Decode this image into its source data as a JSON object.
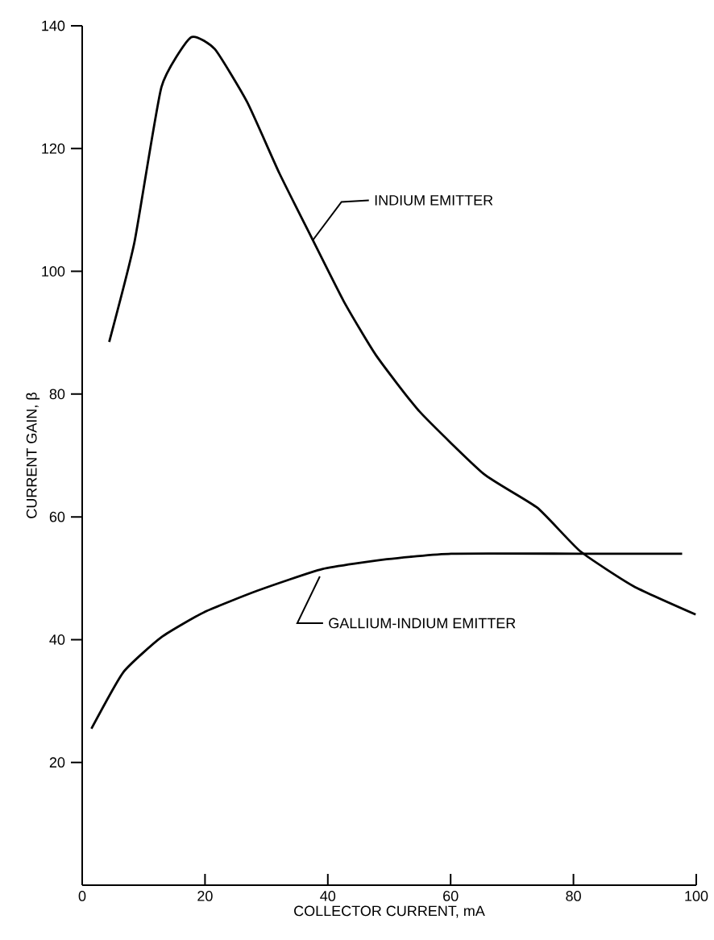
{
  "chart_data": {
    "type": "line",
    "xlabel": "COLLECTOR CURRENT, mA",
    "ylabel": "CURRENT GAIN, β",
    "xlim": [
      0,
      100
    ],
    "ylim": [
      0,
      140
    ],
    "xticks": [
      0,
      20,
      40,
      60,
      80,
      100
    ],
    "yticks": [
      20,
      40,
      60,
      80,
      100,
      120,
      140
    ],
    "grid": false,
    "marker": "none",
    "line_style": "solid",
    "annotations": [
      {
        "text": "INDIUM EMITTER",
        "x": 37.5,
        "y": 105
      },
      {
        "text": "GALLIUM-INDIUM EMITTER",
        "x": 38.7,
        "y": 50.3
      }
    ],
    "series": [
      {
        "color": "#000000",
        "x": [
          4.4,
          8.5,
          12.9,
          17.7,
          21.6,
          26.9,
          32.1,
          37.3,
          42.6,
          47.8,
          54.9,
          65.4,
          74.1,
          81.1,
          89.8,
          99.9
        ],
        "values": [
          88.5,
          104.7,
          130,
          138.1,
          136.2,
          127.5,
          116,
          105.6,
          95.1,
          86.4,
          77.2,
          67,
          61.5,
          54.4,
          48.7,
          44.1
        ]
      },
      {
        "color": "#000000",
        "x": [
          1.5,
          6.7,
          12.9,
          19.9,
          28.6,
          39.1,
          49.6,
          60.1,
          81.1,
          97.7
        ],
        "values": [
          25.5,
          34.7,
          40.4,
          44.5,
          48,
          51.5,
          53.1,
          54,
          54,
          54
        ]
      }
    ]
  }
}
